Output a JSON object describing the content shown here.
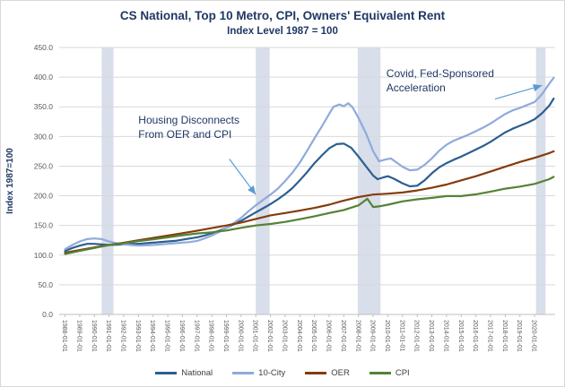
{
  "chart_data": {
    "type": "line",
    "title": "CS National, Top 10 Metro, CPI, Owners' Equivalent Rent",
    "subtitle": "Index Level 1987 = 100",
    "ylabel": "Index 1987=100",
    "xlim": [
      1987.6,
      2021.4
    ],
    "ylim": [
      0,
      450
    ],
    "grid": true,
    "legend_position": "bottom",
    "y_ticks": [
      0,
      50,
      100,
      150,
      200,
      250,
      300,
      350,
      400,
      450
    ],
    "y_tick_labels": [
      "0.0",
      "50.0",
      "100.0",
      "150.0",
      "200.0",
      "250.0",
      "300.0",
      "350.0",
      "400.0",
      "450.0"
    ],
    "x_tick_years": [
      1988,
      1989,
      1990,
      1991,
      1992,
      1993,
      1994,
      1995,
      1996,
      1997,
      1998,
      1999,
      2000,
      2001,
      2002,
      2003,
      2004,
      2005,
      2006,
      2007,
      2008,
      2009,
      2010,
      2011,
      2012,
      2013,
      2014,
      2015,
      2016,
      2017,
      2018,
      2019,
      2020
    ],
    "x_tick_labels": [
      "1988-01-01",
      "1989-01-01",
      "1990-01-01",
      "1991-01-01",
      "1992-01-01",
      "1993-01-01",
      "1994-01-01",
      "1995-01-01",
      "1996-01-01",
      "1997-01-01",
      "1998-01-01",
      "1999-01-01",
      "2000-01-01",
      "2001-01-01",
      "2002-01-01",
      "2003-01-01",
      "2004-01-01",
      "2005-01-01",
      "2006-01-01",
      "2007-01-01",
      "2008-01-01",
      "2009-01-01",
      "2010-01-01",
      "2011-01-01",
      "2012-01-01",
      "2013-01-01",
      "2014-01-01",
      "2015-01-01",
      "2016-01-01",
      "2017-01-01",
      "2018-01-01",
      "2019-01-01",
      "2020-01-01"
    ],
    "recession_bands": [
      [
        1990.5,
        1991.3
      ],
      [
        2001.0,
        2001.95
      ],
      [
        2007.95,
        2009.5
      ],
      [
        2020.1,
        2020.75
      ]
    ],
    "band_color": "#D8DEEA",
    "colors": {
      "title": "#1F3864",
      "annotation": "#1F3864",
      "arrow": "#5B9BD5",
      "grid": "#D9D9D9",
      "axis_text": "#595959",
      "axis_line": "#BFBFBF"
    },
    "series": [
      {
        "name": "National",
        "color": "#2C5F8F",
        "width": 2.2,
        "points": [
          [
            1988,
            107
          ],
          [
            1988.5,
            112
          ],
          [
            1989,
            116
          ],
          [
            1989.5,
            119
          ],
          [
            1990,
            119
          ],
          [
            1990.5,
            118
          ],
          [
            1991,
            117
          ],
          [
            1992,
            118
          ],
          [
            1992.5,
            119
          ],
          [
            1993,
            119
          ],
          [
            1993.5,
            120
          ],
          [
            1994,
            121
          ],
          [
            1995,
            123
          ],
          [
            1995.5,
            124
          ],
          [
            1996,
            126
          ],
          [
            1996.5,
            128
          ],
          [
            1997,
            130
          ],
          [
            1997.5,
            133
          ],
          [
            1998,
            137
          ],
          [
            1998.5,
            141
          ],
          [
            1999,
            146
          ],
          [
            1999.5,
            152
          ],
          [
            2000,
            158
          ],
          [
            2000.5,
            165
          ],
          [
            2001,
            172
          ],
          [
            2001.5,
            179
          ],
          [
            2002,
            186
          ],
          [
            2002.5,
            194
          ],
          [
            2003,
            203
          ],
          [
            2003.5,
            213
          ],
          [
            2004,
            226
          ],
          [
            2004.5,
            240
          ],
          [
            2005,
            255
          ],
          [
            2005.5,
            268
          ],
          [
            2006,
            280
          ],
          [
            2006.5,
            287
          ],
          [
            2007,
            288
          ],
          [
            2007.5,
            281
          ],
          [
            2008,
            266
          ],
          [
            2008.5,
            250
          ],
          [
            2009,
            234
          ],
          [
            2009.3,
            228
          ],
          [
            2009.7,
            231
          ],
          [
            2010,
            233
          ],
          [
            2010.4,
            229
          ],
          [
            2011,
            221
          ],
          [
            2011.5,
            216
          ],
          [
            2012,
            217
          ],
          [
            2012.5,
            226
          ],
          [
            2013,
            238
          ],
          [
            2013.5,
            248
          ],
          [
            2014,
            255
          ],
          [
            2014.5,
            261
          ],
          [
            2015,
            266
          ],
          [
            2015.5,
            272
          ],
          [
            2016,
            278
          ],
          [
            2016.5,
            284
          ],
          [
            2017,
            291
          ],
          [
            2017.5,
            299
          ],
          [
            2018,
            307
          ],
          [
            2018.5,
            313
          ],
          [
            2019,
            318
          ],
          [
            2019.5,
            323
          ],
          [
            2020,
            329
          ],
          [
            2020.5,
            339
          ],
          [
            2021,
            352
          ],
          [
            2021.3,
            364
          ]
        ]
      },
      {
        "name": "10-City",
        "color": "#8FAADC",
        "width": 2.2,
        "points": [
          [
            1988,
            110
          ],
          [
            1988.5,
            117
          ],
          [
            1989,
            123
          ],
          [
            1989.5,
            127
          ],
          [
            1990,
            128
          ],
          [
            1990.5,
            127
          ],
          [
            1991,
            123
          ],
          [
            1991.5,
            120
          ],
          [
            1992,
            118
          ],
          [
            1992.5,
            117
          ],
          [
            1993,
            116
          ],
          [
            1994,
            117
          ],
          [
            1994.5,
            118
          ],
          [
            1995,
            119
          ],
          [
            1996,
            121
          ],
          [
            1996.5,
            122
          ],
          [
            1997,
            124
          ],
          [
            1997.5,
            128
          ],
          [
            1998,
            133
          ],
          [
            1998.5,
            139
          ],
          [
            1999,
            146
          ],
          [
            1999.5,
            154
          ],
          [
            2000,
            163
          ],
          [
            2000.5,
            174
          ],
          [
            2001,
            184
          ],
          [
            2001.5,
            193
          ],
          [
            2002,
            202
          ],
          [
            2002.5,
            212
          ],
          [
            2003,
            225
          ],
          [
            2003.5,
            239
          ],
          [
            2004,
            256
          ],
          [
            2004.5,
            276
          ],
          [
            2005,
            297
          ],
          [
            2005.5,
            317
          ],
          [
            2006,
            338
          ],
          [
            2006.3,
            350
          ],
          [
            2006.7,
            354
          ],
          [
            2007,
            351
          ],
          [
            2007.3,
            356
          ],
          [
            2007.6,
            349
          ],
          [
            2008,
            331
          ],
          [
            2008.5,
            306
          ],
          [
            2009,
            275
          ],
          [
            2009.4,
            258
          ],
          [
            2009.8,
            261
          ],
          [
            2010.2,
            263
          ],
          [
            2010.6,
            256
          ],
          [
            2011,
            249
          ],
          [
            2011.5,
            243
          ],
          [
            2012,
            244
          ],
          [
            2012.5,
            252
          ],
          [
            2013,
            263
          ],
          [
            2013.5,
            276
          ],
          [
            2014,
            286
          ],
          [
            2014.5,
            293
          ],
          [
            2015,
            298
          ],
          [
            2015.5,
            303
          ],
          [
            2016,
            309
          ],
          [
            2016.5,
            315
          ],
          [
            2017,
            322
          ],
          [
            2017.5,
            330
          ],
          [
            2018,
            338
          ],
          [
            2018.5,
            344
          ],
          [
            2019,
            348
          ],
          [
            2019.5,
            353
          ],
          [
            2020,
            358
          ],
          [
            2020.5,
            371
          ],
          [
            2021,
            389
          ],
          [
            2021.3,
            399
          ]
        ]
      },
      {
        "name": "OER",
        "color": "#843C0C",
        "width": 2.2,
        "points": [
          [
            1988,
            104
          ],
          [
            1989,
            108.5
          ],
          [
            1990,
            113
          ],
          [
            1991,
            117
          ],
          [
            1992,
            121
          ],
          [
            1993,
            125
          ],
          [
            1994,
            129
          ],
          [
            1995,
            133
          ],
          [
            1996,
            137
          ],
          [
            1997,
            141
          ],
          [
            1998,
            145.5
          ],
          [
            1999,
            150
          ],
          [
            2000,
            155
          ],
          [
            2001,
            161
          ],
          [
            2002,
            167
          ],
          [
            2003,
            171
          ],
          [
            2004,
            175
          ],
          [
            2005,
            179.5
          ],
          [
            2006,
            185
          ],
          [
            2007,
            192
          ],
          [
            2008,
            198
          ],
          [
            2009,
            202
          ],
          [
            2010,
            203.5
          ],
          [
            2011,
            205.5
          ],
          [
            2012,
            209
          ],
          [
            2013,
            213.5
          ],
          [
            2014,
            219
          ],
          [
            2015,
            226
          ],
          [
            2016,
            233
          ],
          [
            2017,
            241
          ],
          [
            2018,
            249
          ],
          [
            2019,
            257
          ],
          [
            2020,
            264
          ],
          [
            2021,
            272
          ],
          [
            2021.3,
            275
          ]
        ]
      },
      {
        "name": "CPI",
        "color": "#548235",
        "width": 2.2,
        "points": [
          [
            1988,
            102
          ],
          [
            1989,
            107
          ],
          [
            1990,
            112
          ],
          [
            1991,
            117
          ],
          [
            1992,
            120
          ],
          [
            1993,
            123.5
          ],
          [
            1994,
            126.5
          ],
          [
            1995,
            130
          ],
          [
            1996,
            133.5
          ],
          [
            1997,
            136.5
          ],
          [
            1998,
            138.5
          ],
          [
            1999,
            141.5
          ],
          [
            2000,
            146
          ],
          [
            2001,
            150
          ],
          [
            2002,
            152.5
          ],
          [
            2003,
            156
          ],
          [
            2004,
            160.5
          ],
          [
            2005,
            165.5
          ],
          [
            2006,
            171
          ],
          [
            2007,
            176
          ],
          [
            2008,
            184
          ],
          [
            2008.6,
            195
          ],
          [
            2009,
            181
          ],
          [
            2009.5,
            182.5
          ],
          [
            2010,
            185
          ],
          [
            2011,
            190.5
          ],
          [
            2012,
            194
          ],
          [
            2013,
            196.5
          ],
          [
            2014,
            199.5
          ],
          [
            2015,
            199.5
          ],
          [
            2016,
            202.5
          ],
          [
            2017,
            207
          ],
          [
            2018,
            212
          ],
          [
            2019,
            215.5
          ],
          [
            2020,
            220
          ],
          [
            2021,
            228
          ],
          [
            2021.3,
            232
          ]
        ]
      }
    ],
    "annotations": [
      {
        "lines": [
          "Housing Disconnects",
          "From OER and CPI"
        ],
        "x": 1993.0,
        "y": 322,
        "arrow": {
          "x1": 1999.2,
          "y1": 262,
          "x2": 2001.0,
          "y2": 202
        }
      },
      {
        "lines": [
          "Covid, Fed-Sponsored",
          "Acceleration"
        ],
        "x": 2009.9,
        "y": 400,
        "arrow": {
          "x1": 2017.3,
          "y1": 363,
          "x2": 2020.5,
          "y2": 386
        }
      }
    ]
  }
}
